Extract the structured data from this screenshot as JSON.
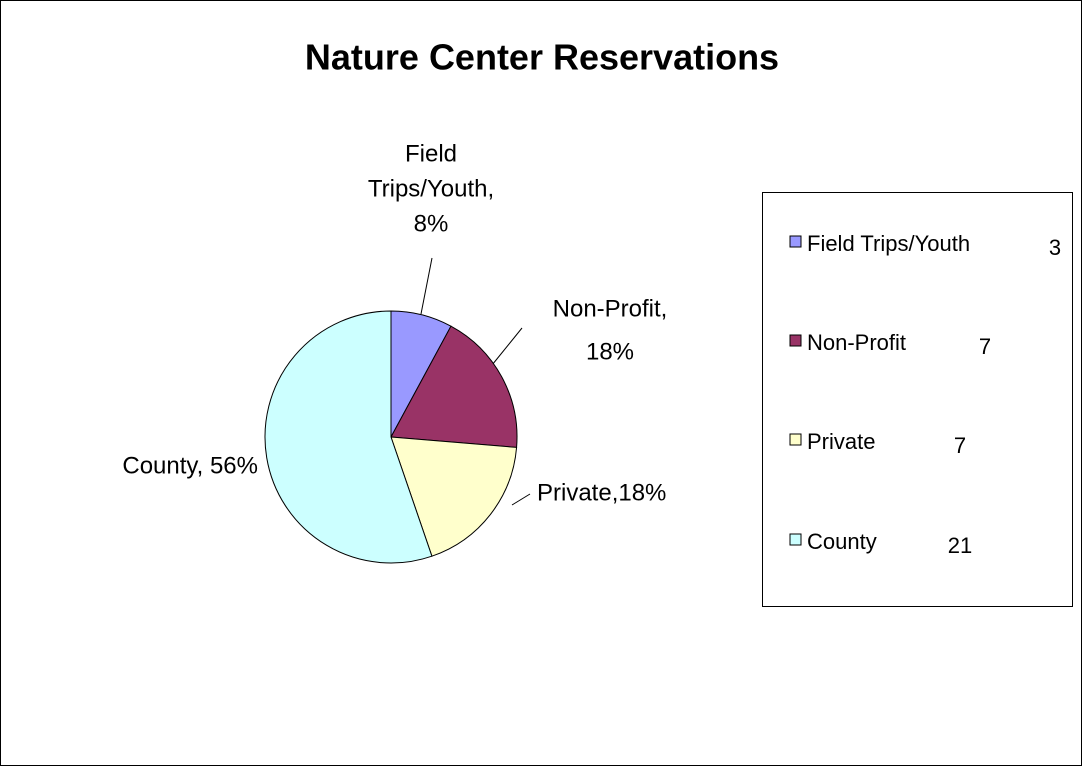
{
  "chart_data": {
    "type": "pie",
    "title": "Nature Center Reservations",
    "categories": [
      "Field Trips/Youth",
      "Non-Profit",
      "Private",
      "County"
    ],
    "values": [
      3,
      7,
      7,
      21
    ],
    "colors": [
      "#9999ff",
      "#993366",
      "#ffffcc",
      "#ccffff"
    ],
    "slice_labels": [
      [
        "Field",
        "Trips/Youth,",
        "8%"
      ],
      [
        "Non-Profit,",
        "18%"
      ],
      [
        "Private,18%"
      ],
      [
        "County, 56%"
      ]
    ],
    "legend": "right"
  }
}
